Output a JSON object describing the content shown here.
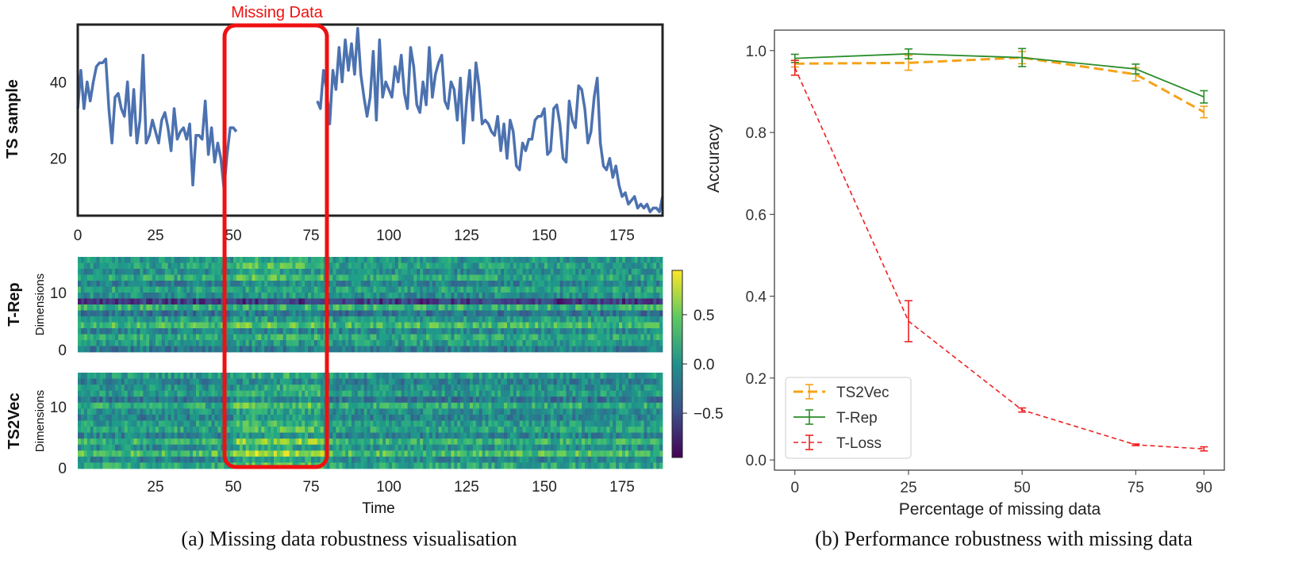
{
  "chart_data": [
    {
      "type": "line",
      "panel": "a-top",
      "ylabel": "TS sample",
      "annotation": "Missing Data",
      "missing_range": [
        50,
        77
      ],
      "xlim": [
        0,
        188
      ],
      "ylim": [
        5,
        55
      ],
      "xticks": [
        "0",
        "25",
        "50",
        "75",
        "100",
        "125",
        "150",
        "175"
      ],
      "xtick_values": [
        0,
        25,
        50,
        75,
        100,
        125,
        150,
        175
      ],
      "yticks": [
        "20",
        "40"
      ],
      "ytick_values": [
        20,
        40
      ],
      "series": [
        {
          "name": "TS sample",
          "x": [
            0,
            1,
            2,
            3,
            4,
            5,
            6,
            7,
            8,
            9,
            10,
            11,
            12,
            13,
            14,
            15,
            16,
            17,
            18,
            19,
            20,
            21,
            22,
            23,
            24,
            25,
            26,
            27,
            28,
            29,
            30,
            31,
            32,
            33,
            34,
            35,
            36,
            37,
            38,
            39,
            40,
            41,
            42,
            43,
            44,
            45,
            46,
            47,
            48,
            49,
            50,
            51
          ],
          "y": [
            33,
            43,
            33,
            40,
            35,
            40,
            44,
            45,
            45,
            46,
            33,
            24,
            36,
            37,
            33,
            31,
            40,
            26,
            38,
            24,
            30,
            47,
            24,
            26,
            30,
            27,
            24,
            30,
            32,
            28,
            22,
            33,
            25,
            27,
            28,
            25,
            29,
            13,
            26,
            26,
            25,
            35,
            21,
            28,
            19,
            24,
            20,
            12,
            21,
            28,
            28,
            27
          ]
        },
        {
          "name": "TS sample",
          "x": [
            77,
            78,
            79,
            80,
            81,
            82,
            83,
            84,
            85,
            86,
            87,
            88,
            89,
            90,
            91,
            92,
            93,
            94,
            95,
            96,
            97,
            98,
            99,
            100,
            101,
            102,
            103,
            104,
            105,
            106,
            107,
            108,
            109,
            110,
            111,
            112,
            113,
            114,
            115,
            116,
            117,
            118,
            119,
            120,
            121,
            122,
            123,
            124,
            125,
            126,
            127,
            128,
            129,
            130,
            131,
            132,
            133,
            134,
            135,
            136,
            137,
            138,
            139,
            140,
            141,
            142,
            143,
            144,
            145,
            146,
            147,
            148,
            149,
            150,
            151,
            152,
            153,
            154,
            155,
            156,
            157,
            158,
            159,
            160,
            161,
            162,
            163,
            164,
            165,
            166,
            167,
            168,
            169,
            170,
            171,
            172,
            173,
            174,
            175,
            176,
            177,
            178,
            179,
            180,
            181,
            182,
            183,
            184,
            185,
            186,
            187,
            188
          ],
          "y": [
            35,
            33,
            43,
            38,
            29,
            43,
            38,
            49,
            40,
            51,
            43,
            50,
            42,
            54,
            42,
            36,
            31,
            36,
            48,
            30,
            51,
            36,
            40,
            38,
            36,
            44,
            40,
            47,
            37,
            33,
            49,
            44,
            34,
            32,
            40,
            34,
            49,
            36,
            42,
            45,
            47,
            35,
            33,
            40,
            38,
            30,
            41,
            24,
            35,
            43,
            30,
            45,
            39,
            29,
            30,
            29,
            27,
            26,
            31,
            22,
            29,
            20,
            30,
            27,
            18,
            17,
            24,
            22,
            25,
            25,
            30,
            31,
            31,
            33,
            21,
            22,
            33,
            34,
            29,
            20,
            19,
            35,
            30,
            28,
            39,
            38,
            33,
            24,
            27,
            36,
            41,
            24,
            18,
            17,
            20,
            15,
            18,
            13,
            10,
            11,
            8,
            9,
            10,
            7,
            8,
            7,
            8,
            6,
            7,
            7,
            6,
            10
          ]
        }
      ]
    },
    {
      "type": "heatmap",
      "panel": "a-middle",
      "title": "T-Rep",
      "ylabel": "Dimensions",
      "yticks": [
        "0",
        "10"
      ]
    },
    {
      "type": "heatmap",
      "panel": "a-bottom",
      "title": "TS2Vec",
      "ylabel": "Dimensions",
      "xlabel": "Time",
      "yticks": [
        "0",
        "10"
      ],
      "xticks": [
        "25",
        "50",
        "75",
        "100",
        "125",
        "150",
        "175"
      ]
    },
    {
      "type": "colorbar",
      "ticks": [
        "0.5",
        "0.0",
        "−0.5"
      ],
      "tick_values": [
        0.5,
        0.0,
        -0.5
      ],
      "range": [
        -0.95,
        0.95
      ]
    },
    {
      "type": "line",
      "panel": "b",
      "xlabel": "Percentage of missing data",
      "ylabel": "Accuracy",
      "x": [
        0,
        25,
        50,
        75,
        90
      ],
      "xticks": [
        "0",
        "25",
        "50",
        "75",
        "90"
      ],
      "yticks": [
        "0.0",
        "0.2",
        "0.4",
        "0.6",
        "0.8",
        "1.0"
      ],
      "ytick_values": [
        0.0,
        0.2,
        0.4,
        0.6,
        0.8,
        1.0
      ],
      "ylim": [
        -0.025,
        1.05
      ],
      "xlim": [
        -4.5,
        94.5
      ],
      "legend": "bottom-left",
      "series": [
        {
          "name": "TS2Vec",
          "values": [
            0.968,
            0.97,
            0.983,
            0.942,
            0.85
          ],
          "errors": [
            0.008,
            0.018,
            0.015,
            0.016,
            0.014
          ],
          "color": "#f5a31a",
          "style": "dashed-thick"
        },
        {
          "name": "T-Rep",
          "values": [
            0.981,
            0.992,
            0.983,
            0.955,
            0.887
          ],
          "errors": [
            0.01,
            0.012,
            0.022,
            0.012,
            0.015
          ],
          "color": "#2a8c2a",
          "style": "solid"
        },
        {
          "name": "T-Loss",
          "values": [
            0.958,
            0.339,
            0.122,
            0.037,
            0.027
          ],
          "errors": [
            0.018,
            0.05,
            0.005,
            0.002,
            0.005
          ],
          "color": "#ee2222",
          "style": "dashed-thin"
        }
      ]
    }
  ],
  "captions": {
    "a": "(a) Missing data robustness visualisation",
    "b": "(b) Performance robustness with  missing data"
  }
}
